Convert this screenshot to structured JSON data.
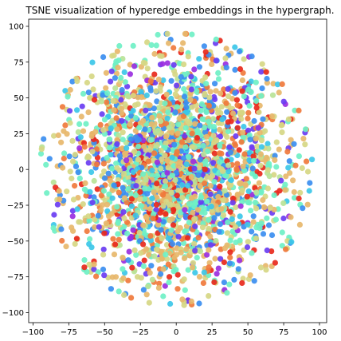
{
  "chart_data": {
    "type": "scatter",
    "title": "TSNE visualization of hyperedge embeddings in the hypergraph.",
    "xlabel": "",
    "ylabel": "",
    "xlim": [
      -103,
      105
    ],
    "ylim": [
      -107,
      105
    ],
    "xticks": [
      -100,
      -75,
      -50,
      -25,
      0,
      25,
      50,
      75,
      100
    ],
    "yticks": [
      100,
      75,
      50,
      25,
      0,
      -25,
      -50,
      -75,
      -100
    ],
    "grid": false,
    "legend": "none",
    "colors": [
      "#e8291c",
      "#f07a3c",
      "#e7b76b",
      "#d6d784",
      "#b8e397",
      "#6ff0c6",
      "#3cc7e8",
      "#3b8ef0",
      "#6a3df2",
      "#9a2fe0"
    ],
    "color_weights": [
      0.07,
      0.09,
      0.17,
      0.17,
      0.04,
      0.17,
      0.07,
      0.12,
      0.06,
      0.04
    ],
    "point_count": 2600,
    "radius_profile": {
      "inner_fraction": 0.85,
      "max_radius": 95
    }
  }
}
